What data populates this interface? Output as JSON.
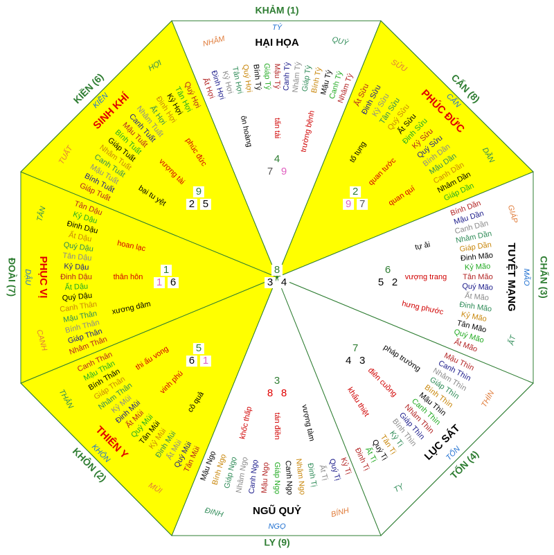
{
  "center": {
    "star_numbers": [
      8,
      3,
      4
    ],
    "star_colors": [
      "#2e7d32",
      "#000000",
      "#000000"
    ]
  },
  "stem_palette": [
    "#b22222",
    "#1a1a8a",
    "#8a8a8a",
    "#2e8b57",
    "#c8860a",
    "#000000",
    "#22aa22"
  ],
  "sectors": [
    {
      "palace": "KHẢM (1)",
      "angle": -90,
      "fill": "#ffffff",
      "mountains": [
        "NHÂM",
        "TÝ",
        "QUÝ"
      ],
      "main_star": "HẠI HỌA",
      "main_color": "#000000",
      "star_numbers": [
        4,
        7,
        9
      ],
      "star_colors": [
        "#2e7d32",
        "#555555",
        "#e060c0"
      ],
      "annotations": [
        "ôn hoàng",
        "tấn tài",
        "trường bệnh"
      ],
      "stems": [
        "Ất Hợi",
        "Đinh Hợi",
        "Kỷ Hợi",
        "Tân Hợi",
        "Quý Hợi",
        "Bính Tý",
        "Giáp Tý",
        "Mậu Tý",
        "Canh Tý",
        "Nhâm Tý",
        "Giáp Tý",
        "Bính Tý",
        "Mậu Tý",
        "Canh Tý",
        "Nhâm Tý"
      ]
    },
    {
      "palace": "CẤN (8)",
      "angle": -45,
      "fill": "#ffff00",
      "mountains": [
        "SỬU",
        "CẤN",
        "DẦN"
      ],
      "main_star": "PHÚC ĐỨC",
      "main_color": "#e00000",
      "star_numbers": [
        2,
        9,
        7
      ],
      "star_colors": [
        "#2e7d32",
        "#e060c0",
        "#555555"
      ],
      "annotations": [
        "tố tụng",
        "quan tước",
        "quan quí"
      ],
      "stems": [
        "Ất Sửu",
        "Đinh Sửu",
        "Kỷ Sửu",
        "Tân Sửu",
        "Quý Sửu",
        "Ất Sửu",
        "Đinh Sửu",
        "Kỷ Sửu",
        "Quý Sửu",
        "Bính Dần",
        "Mậu Dần",
        "Canh Dần",
        "Nhâm Dần",
        "Giáp Dần"
      ]
    },
    {
      "palace": "CHẤN (3)",
      "angle": 0,
      "fill": "#ffffff",
      "mountains": [
        "GIÁP",
        "MÃO",
        "ẤT"
      ],
      "main_star": "TUYỆT MẠNG",
      "main_color": "#000000",
      "star_numbers": [
        6,
        5,
        2
      ],
      "star_colors": [
        "#2e7d32",
        "#000000",
        "#000000"
      ],
      "annotations": [
        "tự ải",
        "vượng trang",
        "hưng phước"
      ],
      "stems": [
        "Bính Dần",
        "Mậu Dần",
        "Canh Dần",
        "Nhâm Dần",
        "Giáp Dần",
        "Đinh Mão",
        "Kỷ Mão",
        "Tân Mão",
        "Quý Mão",
        "Ất Mão",
        "Đinh Mão",
        "Kỷ Mão",
        "Tân Mão",
        "Quý Mão",
        "Ất Mão"
      ]
    },
    {
      "palace": "TỐN (4)",
      "angle": 45,
      "fill": "#ffffff",
      "mountains": [
        "THÌN",
        "TỐN",
        "TỴ"
      ],
      "main_star": "LỤC SÁT",
      "main_color": "#000000",
      "star_numbers": [
        7,
        4,
        3
      ],
      "star_colors": [
        "#2e7d32",
        "#000000",
        "#000000"
      ],
      "annotations": [
        "pháp trường",
        "điên cuồng",
        "khẩu thiệt"
      ],
      "stems": [
        "Mậu Thìn",
        "Canh Thìn",
        "Nhâm Thìn",
        "Giáp Thìn",
        "Bính Thìn",
        "Mậu Thìn",
        "Canh Thìn",
        "Nhâm Thìn",
        "Giáp Thìn",
        "Bính Thìn",
        "Kỷ Tị",
        "Tân Tị",
        "Quý Tị",
        "Ất Tị",
        "Đinh Tị"
      ]
    },
    {
      "palace": "LY (9)",
      "angle": 90,
      "fill": "#ffffff",
      "mountains": [
        "BÍNH",
        "NGỌ",
        "ĐINH"
      ],
      "main_star": "NGŨ QUỶ",
      "main_color": "#000000",
      "star_numbers": [
        3,
        8,
        8
      ],
      "star_colors": [
        "#2e7d32",
        "#e00000",
        "#e00000"
      ],
      "annotations": [
        "vượng tàm",
        "tán điền",
        "khốc thấp"
      ],
      "stems": [
        "Kỷ Tị",
        "Quý Tị",
        "Ất Tị",
        "Đinh Tị",
        "Nhâm Ngọ",
        "Canh Ngọ",
        "Giáp Ngọ",
        "Mậu Ngọ",
        "Canh Ngọ",
        "Nhâm Ngọ",
        "Giáp Ngọ",
        "Bính Ngọ",
        "Mậu Ngọ"
      ]
    },
    {
      "palace": "KHÔN (2)",
      "angle": 135,
      "fill": "#ffff00",
      "mountains": [
        "MÙI",
        "KHÔN",
        "THÂN"
      ],
      "main_star": "THIÊN Y",
      "main_color": "#e00000",
      "star_numbers": [
        5,
        6,
        1
      ],
      "star_colors": [
        "#2e7d32",
        "#000000",
        "#e060c0"
      ],
      "annotations": [
        "cô quả",
        "vinh phú",
        "thi ấu vong"
      ],
      "stems": [
        "Tân Mùi",
        "Quý Mùi",
        "Ất Mùi",
        "Đinh Mùi",
        "Kỷ Mùi",
        "Tân Mùi",
        "Quý Mùi",
        "Ất Mùi",
        "Đinh Mùi",
        "Kỷ Mùi",
        "Nhâm Thân",
        "Giáp Thân",
        "Bính Thân",
        "Mậu Thân",
        "Canh Thân"
      ]
    },
    {
      "palace": "ĐOÀI (7)",
      "angle": 180,
      "fill": "#ffff00",
      "mountains": [
        "CANH",
        "DẬU",
        "TÂN"
      ],
      "main_star": "PHỤC VỊ",
      "main_color": "#e00000",
      "star_numbers": [
        1,
        1,
        6
      ],
      "star_colors": [
        "#2e7d32",
        "#e060c0",
        "#000000"
      ],
      "annotations": [
        "xương dâm",
        "thân hôn",
        "hoan lạc"
      ],
      "stems": [
        "Nhâm Thân",
        "Giáp Thân",
        "Bính Thân",
        "Mậu Thân",
        "Canh Thân",
        "Quý Dậu",
        "Ất Dậu",
        "Đinh Dậu",
        "Kỷ Dậu",
        "Tân Dậu",
        "Quý Dậu",
        "Ất Dậu",
        "Đinh Dậu",
        "Kỷ Dậu",
        "Tân Dậu"
      ]
    },
    {
      "palace": "KIỀN (6)",
      "angle": -135,
      "fill": "#ffff00",
      "mountains": [
        "TUẤT",
        "KIỀN",
        "HỢI"
      ],
      "main_star": "SINH KHÍ",
      "main_color": "#e00000",
      "star_numbers": [
        9,
        2,
        5
      ],
      "star_colors": [
        "#2e7d32",
        "#000000",
        "#000000"
      ],
      "annotations": [
        "bại tu yệt",
        "vượng tài",
        "phúc đức"
      ],
      "stems": [
        "Giáp Tuất",
        "Bính Tuất",
        "Mậu Tuất",
        "Canh Tuất",
        "Nhâm Tuất",
        "Giáp Tuất",
        "Bính Tuất",
        "Mậu Tuất",
        "Canh Tuất",
        "Nhâm Tuất",
        "Ất Hợi",
        "Đinh Hợi",
        "Kỷ Hợi",
        "Tân Hợi",
        "Quý Hợi"
      ]
    }
  ]
}
